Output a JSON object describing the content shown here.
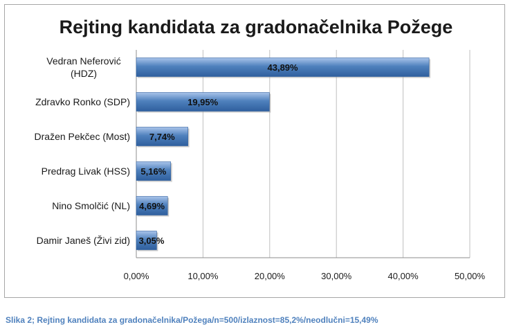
{
  "chart_data": {
    "type": "bar",
    "orientation": "horizontal",
    "title": "Rejting kandidata za gradonačelnika Požege",
    "categories": [
      [
        "Vedran Neferović",
        "(HDZ)"
      ],
      [
        "Zdravko Ronko (SDP)"
      ],
      [
        "Dražen Pekčec (Most)"
      ],
      [
        "Predrag Livak (HSS)"
      ],
      [
        "Nino Smolčić (NL)"
      ],
      [
        "Damir Janeš (Živi zid)"
      ]
    ],
    "values": [
      43.89,
      19.95,
      7.74,
      5.16,
      4.69,
      3.05
    ],
    "data_labels": [
      "43,89%",
      "19,95%",
      "7,74%",
      "5,16%",
      "4,69%",
      "3,05%"
    ],
    "xlim": [
      0,
      50
    ],
    "x_ticks": [
      0,
      10,
      20,
      30,
      40,
      50
    ],
    "x_tick_labels": [
      "0,00%",
      "10,00%",
      "20,00%",
      "30,00%",
      "40,00%",
      "50,00%"
    ],
    "grid": "vertical",
    "bar_color": "#4f81bd"
  },
  "caption": "Slika 2; Rejting kandidata za gradonačelnika/Požega/n=500/izlaznost=85,2%/neodlučni=15,49%"
}
